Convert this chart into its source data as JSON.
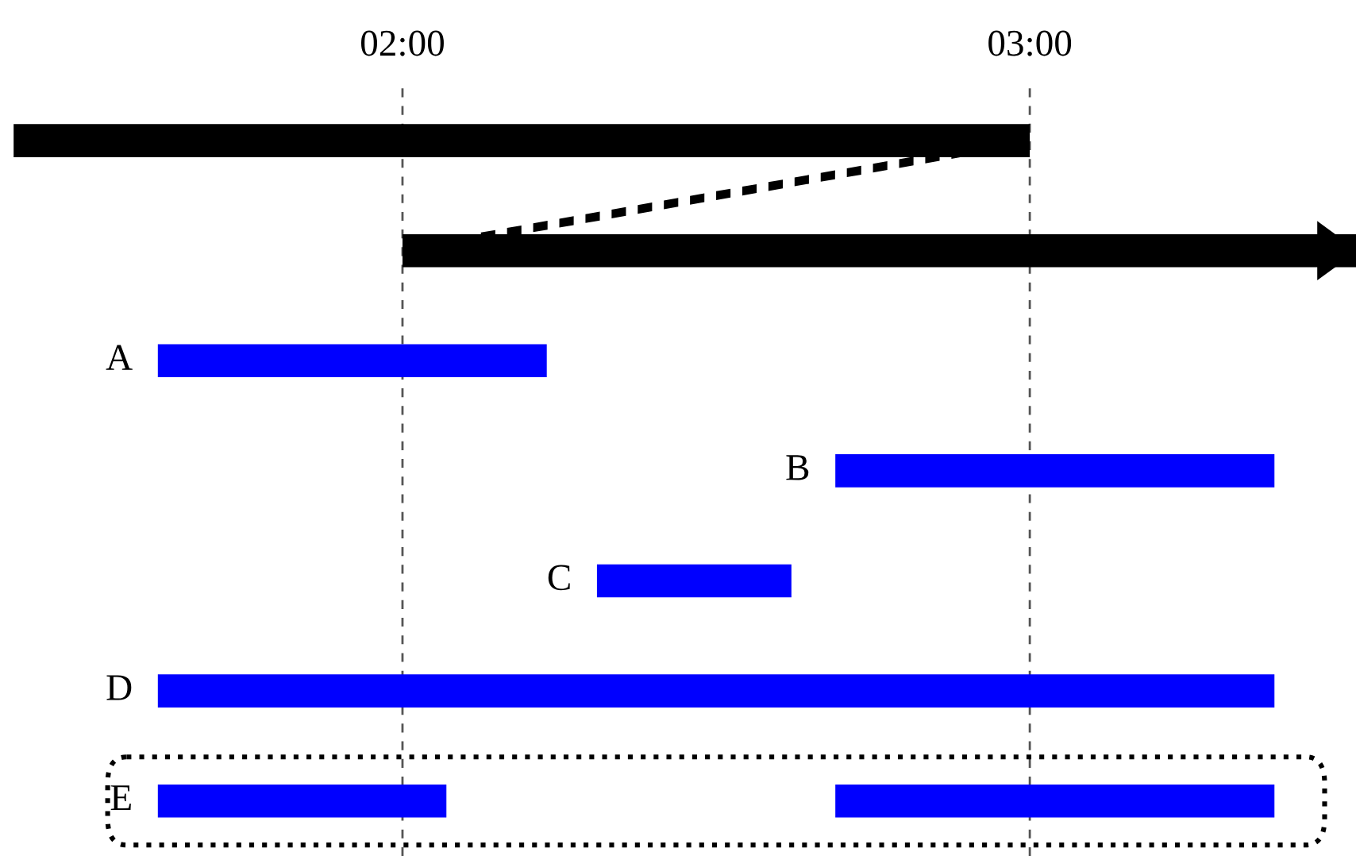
{
  "chart_data": {
    "type": "bar",
    "orientation": "horizontal",
    "categories": [
      null,
      null,
      "A",
      "B",
      "C",
      "D",
      "E"
    ],
    "series": [
      {
        "color": "#000000",
        "base": [
          1.38,
          2.0,
          null,
          null,
          null,
          null,
          null
        ],
        "values": [
          1.62,
          1.52,
          null,
          null,
          null,
          null,
          null
        ]
      },
      {
        "color": "#0000ff",
        "base": [
          null,
          null,
          1.61,
          2.69,
          2.31,
          1.61,
          1.61
        ],
        "values": [
          null,
          null,
          0.62,
          0.7,
          0.31,
          1.78,
          0.46
        ]
      },
      {
        "color": "#0000ff",
        "base": [
          null,
          null,
          null,
          null,
          null,
          null,
          2.69
        ],
        "values": [
          null,
          null,
          null,
          null,
          null,
          null,
          0.7
        ]
      }
    ],
    "xlim": [
      1.38,
      3.52
    ],
    "xticks": [
      {
        "value": 2,
        "label": "02:00"
      },
      {
        "value": 3,
        "label": "03:00"
      }
    ],
    "ref_lines": [
      {
        "axis": "x",
        "value": 2,
        "color": "#555555",
        "line_style": "dashed"
      },
      {
        "axis": "x",
        "value": 3,
        "color": "#555555",
        "line_style": "dashed"
      }
    ],
    "grid": false
  }
}
